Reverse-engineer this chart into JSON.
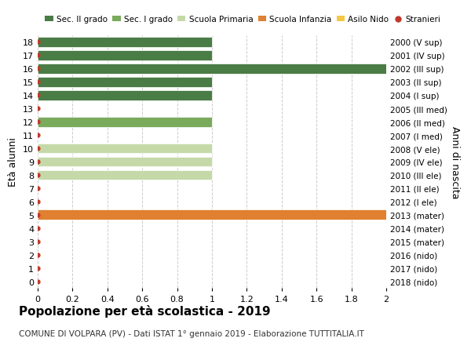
{
  "ages": [
    18,
    17,
    16,
    15,
    14,
    13,
    12,
    11,
    10,
    9,
    8,
    7,
    6,
    5,
    4,
    3,
    2,
    1,
    0
  ],
  "years": [
    "2000 (V sup)",
    "2001 (IV sup)",
    "2002 (III sup)",
    "2003 (II sup)",
    "2004 (I sup)",
    "2005 (III med)",
    "2006 (II med)",
    "2007 (I med)",
    "2008 (V ele)",
    "2009 (IV ele)",
    "2010 (III ele)",
    "2011 (II ele)",
    "2012 (I ele)",
    "2013 (mater)",
    "2014 (mater)",
    "2015 (mater)",
    "2016 (nido)",
    "2017 (nido)",
    "2018 (nido)"
  ],
  "bar_values": [
    1.0,
    1.0,
    2.0,
    1.0,
    1.0,
    0,
    1.0,
    0,
    1.0,
    1.0,
    1.0,
    0,
    0,
    2.0,
    0,
    0,
    0,
    0,
    0
  ],
  "bar_colors": [
    "#4a7c45",
    "#4a7c45",
    "#4a7c45",
    "#4a7c45",
    "#4a7c45",
    "#4a7c45",
    "#7aaa5c",
    "#7aaa5c",
    "#c5d9a8",
    "#c5d9a8",
    "#c5d9a8",
    "#c5d9a8",
    "#c5d9a8",
    "#e08030",
    "#e08030",
    "#e08030",
    "#f5c842",
    "#f5c842",
    "#f5c842"
  ],
  "legend_labels": [
    "Sec. II grado",
    "Sec. I grado",
    "Scuola Primaria",
    "Scuola Infanzia",
    "Asilo Nido",
    "Stranieri"
  ],
  "legend_colors": [
    "#4a7c45",
    "#7aaa5c",
    "#c5d9a8",
    "#e08030",
    "#f5c842",
    "#c0392b"
  ],
  "title": "Popolazione per età scolastica - 2019",
  "subtitle": "COMUNE DI VOLPARA (PV) - Dati ISTAT 1° gennaio 2019 - Elaborazione TUTTITALIA.IT",
  "ylabel_left": "Età alunni",
  "ylabel_right": "Anni di nascita",
  "xlim": [
    0,
    2.0
  ],
  "xticks": [
    0,
    0.2,
    0.4,
    0.6,
    0.8,
    1.0,
    1.2,
    1.4,
    1.6,
    1.8,
    2.0
  ],
  "background_color": "#ffffff",
  "grid_color": "#cccccc",
  "stranieri_color": "#c0392b",
  "bar_height": 0.75
}
